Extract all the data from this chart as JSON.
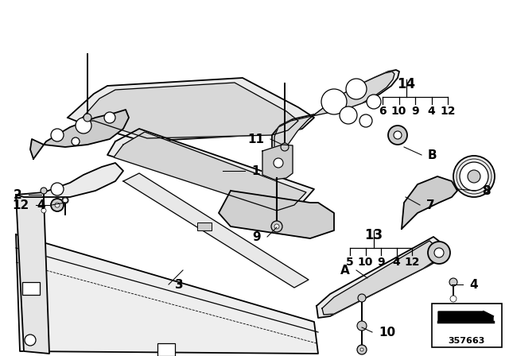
{
  "bg_color": "#ffffff",
  "line_color": "#000000",
  "text_color": "#000000",
  "label_fontsize": 11,
  "callout_14_nums": [
    "6",
    "10",
    "9",
    "4",
    "12"
  ],
  "callout_13_nums": [
    "5",
    "10",
    "9",
    "4",
    "12"
  ],
  "diagram_number": "357663",
  "fill_light": "#ebebeb",
  "fill_mid": "#cccccc",
  "fill_dark": "#aaaaaa"
}
